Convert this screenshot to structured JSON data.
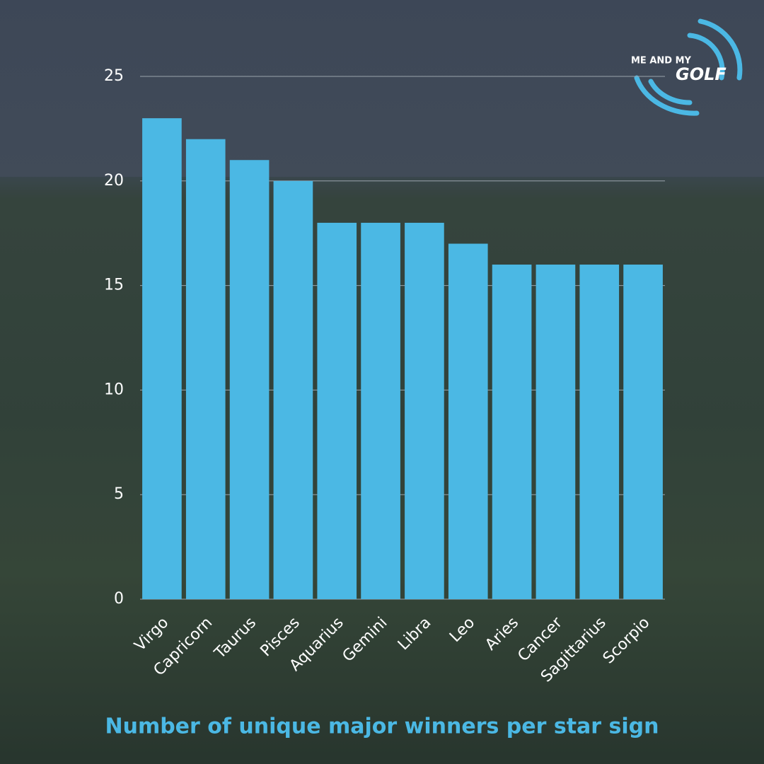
{
  "logo": {
    "line1": "ME AND MY",
    "line2": "GOLF"
  },
  "chart_data": {
    "type": "bar",
    "title": "Number of unique major winners per star sign",
    "categories": [
      "Virgo",
      "Capricorn",
      "Taurus",
      "Pisces",
      "Aquarius",
      "Gemini",
      "Libra",
      "Leo",
      "Aries",
      "Cancer",
      "Sagittarius",
      "Scorpio"
    ],
    "values": [
      23,
      22,
      21,
      20,
      18,
      18,
      18,
      17,
      16,
      16,
      16,
      16
    ],
    "color": "#4bb8e4",
    "ylim": [
      0,
      25
    ],
    "yticks": [
      0,
      5,
      10,
      15,
      20,
      25
    ],
    "grid": true
  }
}
